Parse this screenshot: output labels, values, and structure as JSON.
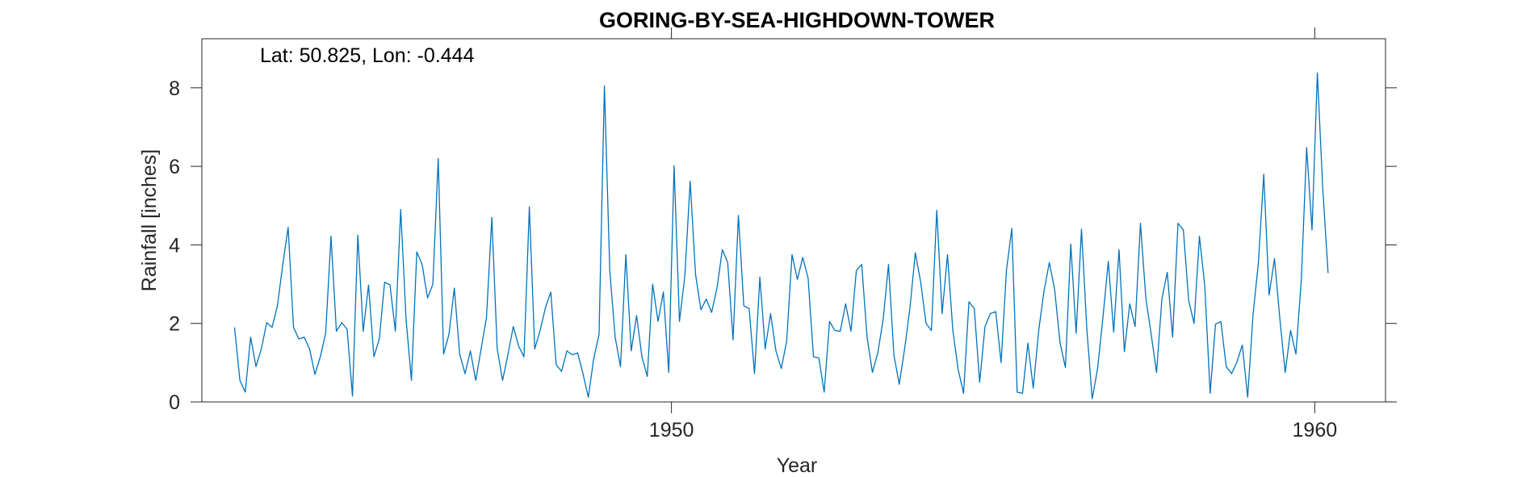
{
  "chart_data": {
    "type": "line",
    "title": "GORING-BY-SEA-HIGHDOWN-TOWER",
    "annotation": "Lat: 50.825, Lon: -0.444",
    "xlabel": "Year",
    "ylabel": "Rainfall [inches]",
    "xlim": [
      1942.7,
      1961.1
    ],
    "ylim": [
      0,
      9.25
    ],
    "x_ticks": [
      1950,
      1960
    ],
    "y_ticks": [
      0,
      2,
      4,
      6,
      8
    ],
    "grid": false,
    "line_color": "#0072BD",
    "series": [
      {
        "x_start": 1943.208,
        "x_step": 0.08333,
        "values": [
          1.9,
          0.55,
          0.25,
          1.65,
          0.9,
          1.35,
          2.02,
          1.9,
          2.45,
          3.5,
          4.45,
          1.9,
          1.6,
          1.65,
          1.35,
          0.7,
          1.15,
          1.75,
          4.22,
          1.8,
          2.02,
          1.85,
          0.15,
          4.25,
          1.8,
          2.98,
          1.15,
          1.6,
          3.05,
          2.98,
          1.8,
          4.9,
          2.1,
          0.55,
          3.82,
          3.5,
          2.65,
          3.0,
          6.2,
          1.22,
          1.72,
          2.9,
          1.22,
          0.72,
          1.3,
          0.55,
          1.35,
          2.15,
          4.7,
          1.35,
          0.55,
          1.2,
          1.92,
          1.42,
          1.15,
          4.97,
          1.35,
          1.82,
          2.4,
          2.8,
          0.95,
          0.78,
          1.3,
          1.2,
          1.25,
          0.72,
          0.12,
          1.1,
          1.72,
          8.05,
          3.35,
          1.65,
          0.9,
          3.75,
          1.3,
          2.2,
          1.15,
          0.65,
          3.0,
          2.05,
          2.8,
          0.75,
          6.02,
          2.05,
          3.2,
          5.62,
          3.25,
          2.35,
          2.62,
          2.28,
          2.9,
          3.88,
          3.55,
          1.58,
          4.75,
          2.45,
          2.38,
          0.72,
          3.18,
          1.35,
          2.25,
          1.3,
          0.85,
          1.55,
          3.75,
          3.12,
          3.68,
          3.15,
          1.15,
          1.12,
          0.25,
          2.05,
          1.82,
          1.8,
          2.5,
          1.8,
          3.35,
          3.5,
          1.65,
          0.75,
          1.25,
          2.1,
          3.5,
          1.2,
          0.45,
          1.35,
          2.4,
          3.8,
          3.05,
          2.0,
          1.82,
          4.88,
          2.25,
          3.75,
          1.82,
          0.82,
          0.22,
          2.55,
          2.38,
          0.5,
          1.92,
          2.25,
          2.3,
          1.0,
          3.35,
          4.42,
          0.25,
          0.22,
          1.5,
          0.35,
          1.8,
          2.82,
          3.55,
          2.85,
          1.5,
          0.88,
          4.02,
          1.75,
          4.4,
          1.85,
          0.08,
          0.85,
          2.15,
          3.58,
          1.78,
          3.88,
          1.28,
          2.5,
          1.92,
          4.55,
          2.65,
          1.72,
          0.75,
          2.62,
          3.3,
          1.65,
          4.55,
          4.38,
          2.58,
          2.0,
          4.22,
          2.95,
          0.22,
          1.98,
          2.05,
          0.9,
          0.72,
          1.02,
          1.45,
          0.12,
          2.22,
          3.55,
          5.8,
          2.72,
          3.65,
          2.12,
          0.75,
          1.82,
          1.22,
          3.1,
          6.48,
          4.38,
          8.38,
          5.45,
          3.28
        ]
      }
    ]
  }
}
